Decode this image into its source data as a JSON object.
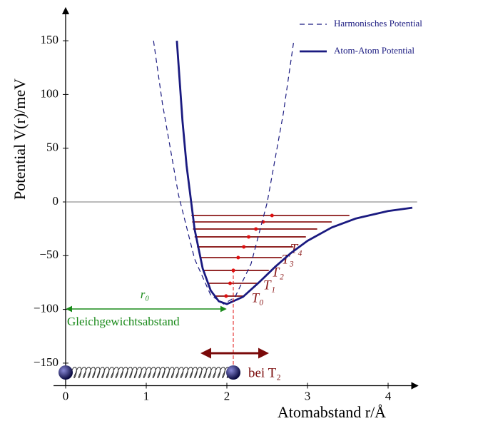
{
  "chart_data": {
    "type": "line",
    "xlabel": "Atomabstand r/Å",
    "ylabel": "Potential V(r)/meV",
    "xlim": [
      -0.15,
      4.36
    ],
    "ylim": [
      -171,
      180
    ],
    "xticks": [
      0,
      1,
      2,
      3,
      4
    ],
    "yticks": [
      {
        "value": -150,
        "label": "−150"
      },
      {
        "value": -100,
        "label": "−100"
      },
      {
        "value": -50,
        "label": "−50"
      },
      0,
      50,
      100,
      150
    ],
    "legend": "upper right",
    "series": [
      {
        "name": "Harmonisches Potential",
        "color": "#1a1a80",
        "style": "dashed",
        "x": [
          1.09,
          1.2,
          1.4,
          1.6,
          1.8,
          1.96,
          2.1,
          2.3,
          2.5,
          2.7,
          2.83
        ],
        "values": [
          150,
          91.9,
          6.5,
          -53.1,
          -86.7,
          -95,
          -88.7,
          -57.6,
          -0.6,
          82.2,
          149.9
        ]
      },
      {
        "name": "Atom-Atom Potential",
        "color": "#1a1a80",
        "style": "solid",
        "x": [
          1.38,
          1.45,
          1.5,
          1.6,
          1.7,
          1.8,
          1.9,
          2.0,
          2.2,
          2.4,
          2.6,
          2.8,
          3.0,
          3.3,
          3.6,
          4.0,
          4.3
        ],
        "values": [
          150,
          75.3,
          33.9,
          -25.5,
          -61.9,
          -82.5,
          -92.4,
          -95,
          -88.3,
          -74.8,
          -60.3,
          -47.2,
          -36.2,
          -23.8,
          -15.4,
          -8.4,
          -5.4
        ]
      }
    ],
    "levels": {
      "color": "#8b1a1a",
      "values": [
        -87.6,
        -75.7,
        -63.7,
        -51.8,
        -41.8,
        -32.5,
        -25.2,
        -18.6,
        -12.6
      ],
      "x_left": [
        1.84,
        1.76,
        1.71,
        1.66,
        1.63,
        1.6,
        1.58,
        1.57,
        1.56
      ],
      "x_right": [
        2.2,
        2.38,
        2.52,
        2.68,
        2.82,
        2.98,
        3.12,
        3.3,
        3.52
      ],
      "x_center": [
        1.99,
        2.04,
        2.08,
        2.14,
        2.21,
        2.27,
        2.36,
        2.45,
        2.56
      ]
    },
    "level_labels": [
      "T₀",
      "T₁",
      "T₂",
      "T₃",
      "T₄"
    ],
    "annotations": {
      "r0": "r₀",
      "equilibrium": "Gleichgewichtsabstand",
      "at_level": "bei T₂"
    }
  }
}
